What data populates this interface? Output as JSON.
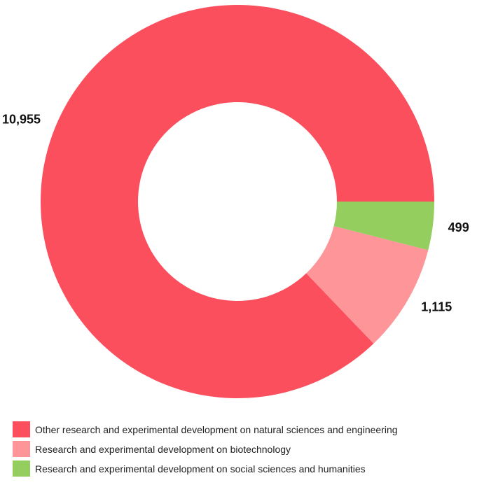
{
  "chart_data": {
    "type": "pie",
    "donut": true,
    "slices": [
      {
        "name": "Other research and experimental development on natural sciences and engineering",
        "value": 10955,
        "label": "10,955",
        "color": "#FC4F5E"
      },
      {
        "name": "Research and experimental development on biotechnology",
        "value": 1115,
        "label": "1,115",
        "color": "#FD9599"
      },
      {
        "name": "Research and experimental development on social sciences and humanities",
        "value": 499,
        "label": "499",
        "color": "#93CE5E"
      }
    ],
    "legend_position": "bottom-left"
  }
}
